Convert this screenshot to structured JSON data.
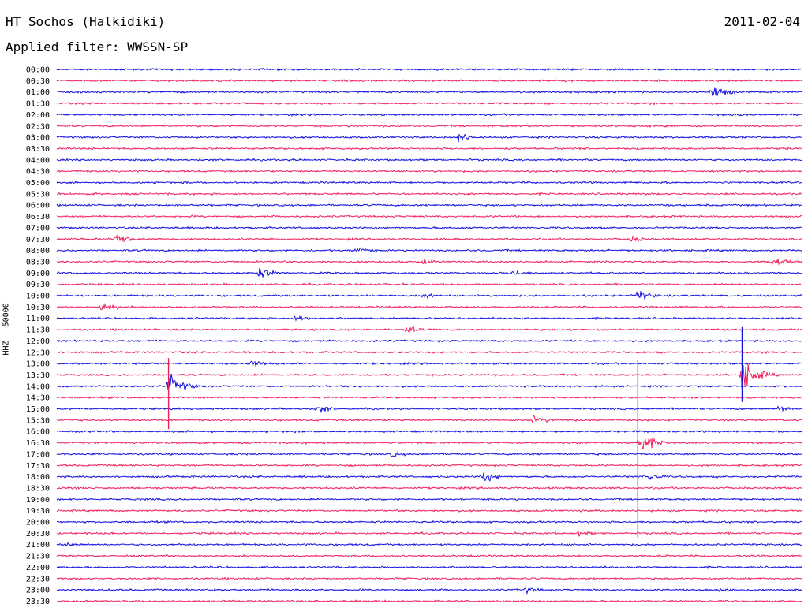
{
  "header": {
    "station": "HT Sochos (Halkidiki)",
    "date": "2011-02-04",
    "filter": "Applied filter: WWSSN-SP"
  },
  "chart_data": {
    "type": "line",
    "ylabel": "HHZ - 50000",
    "rows": [
      "00:00",
      "00:30",
      "01:00",
      "01:30",
      "02:00",
      "02:30",
      "03:00",
      "03:30",
      "04:00",
      "04:30",
      "05:00",
      "05:30",
      "06:00",
      "06:30",
      "07:00",
      "07:30",
      "08:00",
      "08:30",
      "09:00",
      "09:30",
      "10:00",
      "10:30",
      "11:00",
      "11:30",
      "12:00",
      "12:30",
      "13:00",
      "13:30",
      "14:00",
      "14:30",
      "15:00",
      "15:30",
      "16:00",
      "16:30",
      "17:00",
      "17:30",
      "18:00",
      "18:30",
      "19:00",
      "19:30",
      "20:00",
      "20:30",
      "21:00",
      "21:30",
      "22:00",
      "22:30",
      "23:00",
      "23:30"
    ],
    "colors": [
      "#1010e0",
      "#f0205a"
    ],
    "x_minutes": [
      0,
      30
    ],
    "events": [
      {
        "row": 2,
        "x": 0.88,
        "amp": 14
      },
      {
        "row": 6,
        "x": 0.54,
        "amp": 10
      },
      {
        "row": 15,
        "x": 0.08,
        "amp": 12
      },
      {
        "row": 15,
        "x": 0.77,
        "amp": 7
      },
      {
        "row": 16,
        "x": 0.4,
        "amp": 9
      },
      {
        "row": 17,
        "x": 0.49,
        "amp": 6
      },
      {
        "row": 17,
        "x": 0.96,
        "amp": 10
      },
      {
        "row": 18,
        "x": 0.27,
        "amp": 12
      },
      {
        "row": 18,
        "x": 0.61,
        "amp": 8
      },
      {
        "row": 20,
        "x": 0.49,
        "amp": 7
      },
      {
        "row": 20,
        "x": 0.78,
        "amp": 11
      },
      {
        "row": 21,
        "x": 0.06,
        "amp": 10
      },
      {
        "row": 22,
        "x": 0.32,
        "amp": 7
      },
      {
        "row": 23,
        "x": 0.47,
        "amp": 8
      },
      {
        "row": 26,
        "x": 0.26,
        "amp": 9
      },
      {
        "row": 27,
        "x": 0.92,
        "amp": 30
      },
      {
        "row": 28,
        "x": 0.15,
        "amp": 22
      },
      {
        "row": 30,
        "x": 0.35,
        "amp": 9
      },
      {
        "row": 30,
        "x": 0.97,
        "amp": 7
      },
      {
        "row": 31,
        "x": 0.64,
        "amp": 9
      },
      {
        "row": 33,
        "x": 0.78,
        "amp": 22
      },
      {
        "row": 34,
        "x": 0.45,
        "amp": 6
      },
      {
        "row": 36,
        "x": 0.57,
        "amp": 12
      },
      {
        "row": 36,
        "x": 0.79,
        "amp": 10
      },
      {
        "row": 41,
        "x": 0.7,
        "amp": 6
      },
      {
        "row": 42,
        "x": 0.01,
        "amp": 6
      },
      {
        "row": 46,
        "x": 0.63,
        "amp": 6
      },
      {
        "row": 46,
        "x": 0.89,
        "amp": 6
      }
    ],
    "spikes": [
      {
        "row": 29,
        "x": 0.15,
        "up": 50,
        "down": 40
      },
      {
        "row": 33,
        "x": 0.78,
        "up": 105,
        "down": 120
      },
      {
        "row": 28,
        "x": 0.92,
        "up": 75,
        "down": 20
      }
    ]
  }
}
